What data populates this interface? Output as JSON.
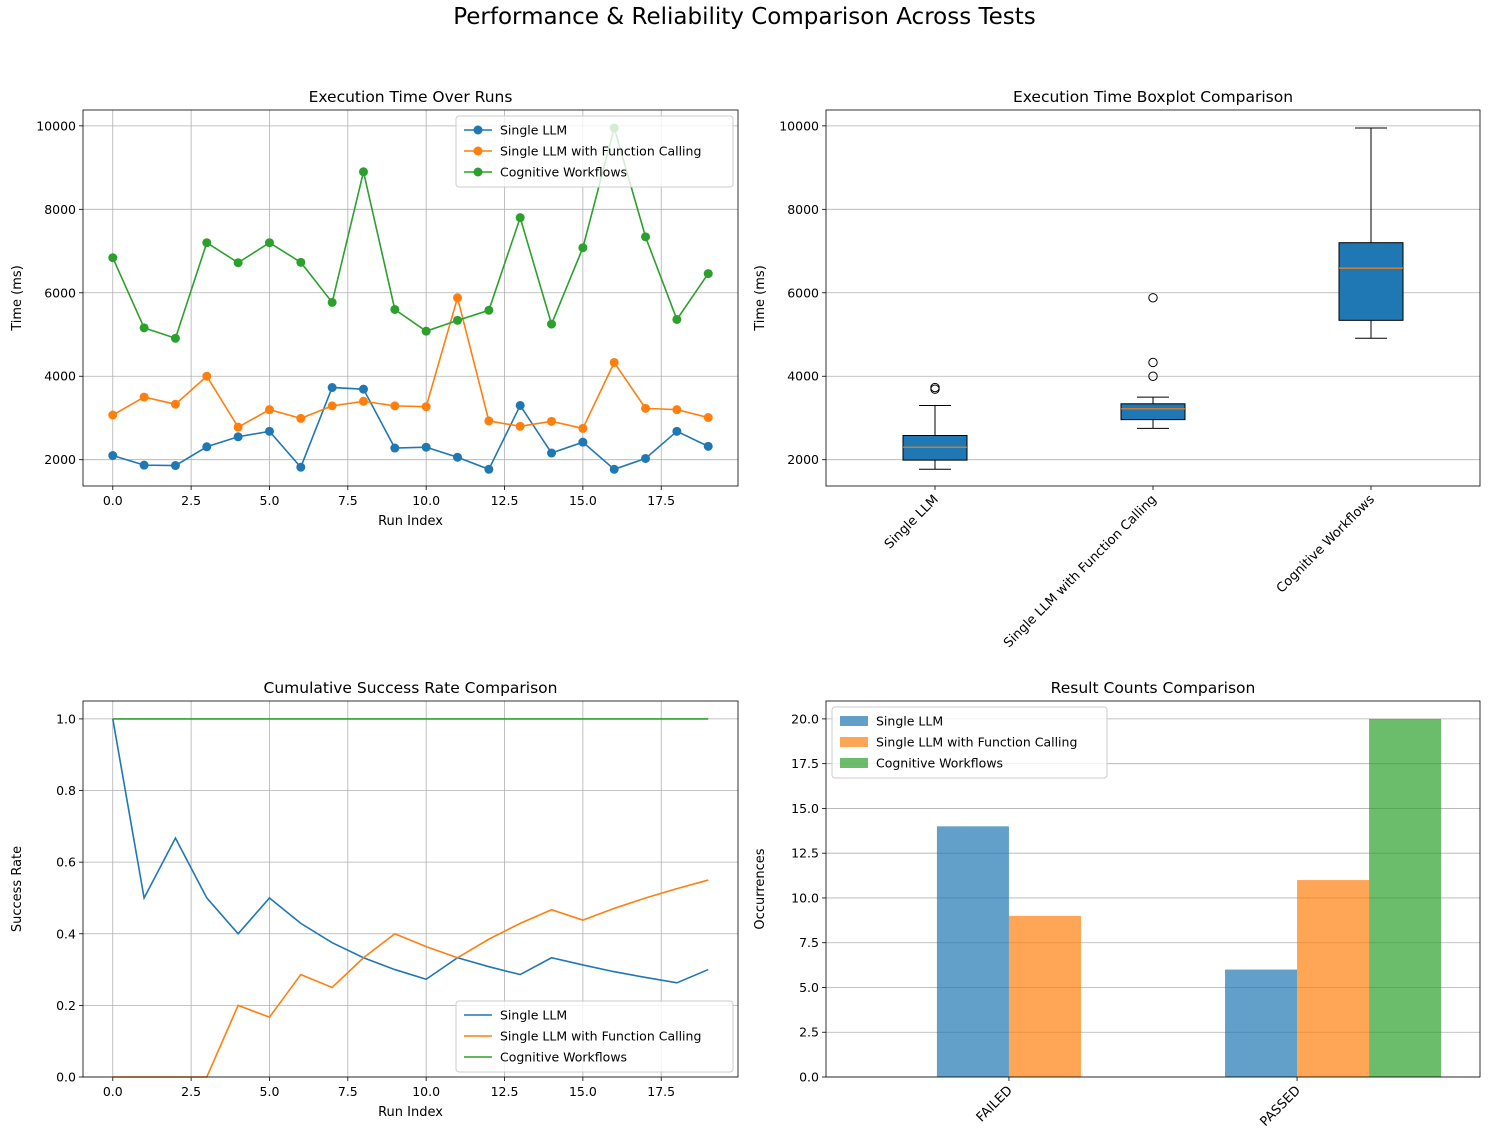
{
  "suptitle": "Performance & Reliability Comparison Across Tests",
  "colors": {
    "single": "#1f77b4",
    "function": "#ff7f0e",
    "cognitive": "#2ca02c",
    "median": "#ff7f0e"
  },
  "chart_data": [
    {
      "type": "line",
      "title": "Execution Time Over Runs",
      "xlabel": "Run Index",
      "ylabel": "Time (ms)",
      "markers": true,
      "legend": "upper right",
      "grid": true,
      "xlim": [
        -0.95,
        19.95
      ],
      "ylim": [
        1370,
        10380
      ],
      "xticks": [
        0,
        2.5,
        5,
        7.5,
        10,
        12.5,
        15,
        17.5
      ],
      "xticklabels": [
        "0.0",
        "2.5",
        "5.0",
        "7.5",
        "10.0",
        "12.5",
        "15.0",
        "17.5"
      ],
      "yticks": [
        2000,
        4000,
        6000,
        8000,
        10000
      ],
      "yticklabels": [
        "2000",
        "4000",
        "6000",
        "8000",
        "10000"
      ],
      "x": [
        0,
        1,
        2,
        3,
        4,
        5,
        6,
        7,
        8,
        9,
        10,
        11,
        12,
        13,
        14,
        15,
        16,
        17,
        18,
        19
      ],
      "series": [
        {
          "name": "Single LLM",
          "color": "#1f77b4",
          "values": [
            2100,
            1870,
            1860,
            2310,
            2550,
            2680,
            1820,
            3730,
            3690,
            2280,
            2300,
            2060,
            1770,
            3300,
            2160,
            2420,
            1770,
            2030,
            2680,
            2320
          ]
        },
        {
          "name": "Single LLM with Function Calling",
          "color": "#ff7f0e",
          "values": [
            3070,
            3500,
            3330,
            4000,
            2780,
            3200,
            2990,
            3290,
            3400,
            3290,
            3270,
            5880,
            2930,
            2800,
            2920,
            2750,
            4330,
            3230,
            3200,
            3010
          ]
        },
        {
          "name": "Cognitive Workflows",
          "color": "#2ca02c",
          "values": [
            6840,
            5160,
            4910,
            7200,
            6720,
            7200,
            6730,
            5770,
            8900,
            5600,
            5080,
            5340,
            5580,
            7800,
            5250,
            7080,
            9950,
            7340,
            5360,
            6460
          ]
        }
      ]
    },
    {
      "type": "box",
      "title": "Execution Time Boxplot Comparison",
      "ylabel": "Time (ms)",
      "grid": "y",
      "ylim": [
        1370,
        10380
      ],
      "yticks": [
        2000,
        4000,
        6000,
        8000,
        10000
      ],
      "yticklabels": [
        "2000",
        "4000",
        "6000",
        "8000",
        "10000"
      ],
      "categories": [
        "Single LLM",
        "Single LLM with Function Calling",
        "Cognitive Workflows"
      ],
      "boxes": [
        {
          "whisker_low": 1770,
          "q1": 1990,
          "median": 2300,
          "q3": 2580,
          "whisker_high": 3300,
          "outliers": [
            3690,
            3730
          ]
        },
        {
          "whisker_low": 2750,
          "q1": 2960,
          "median": 3220,
          "q3": 3340,
          "whisker_high": 3500,
          "outliers": [
            4000,
            4330,
            5880
          ]
        },
        {
          "whisker_low": 4910,
          "q1": 5340,
          "median": 6590,
          "q3": 7200,
          "whisker_high": 9950,
          "outliers": []
        }
      ]
    },
    {
      "type": "line",
      "title": "Cumulative Success Rate Comparison",
      "xlabel": "Run Index",
      "ylabel": "Success Rate",
      "markers": false,
      "legend": "lower right",
      "grid": true,
      "xlim": [
        -0.95,
        19.95
      ],
      "ylim": [
        0,
        1.05
      ],
      "xticks": [
        0,
        2.5,
        5,
        7.5,
        10,
        12.5,
        15,
        17.5
      ],
      "xticklabels": [
        "0.0",
        "2.5",
        "5.0",
        "7.5",
        "10.0",
        "12.5",
        "15.0",
        "17.5"
      ],
      "yticks": [
        0,
        0.2,
        0.4,
        0.6,
        0.8,
        1.0
      ],
      "yticklabels": [
        "0.0",
        "0.2",
        "0.4",
        "0.6",
        "0.8",
        "1.0"
      ],
      "x": [
        0,
        1,
        2,
        3,
        4,
        5,
        6,
        7,
        8,
        9,
        10,
        11,
        12,
        13,
        14,
        15,
        16,
        17,
        18,
        19
      ],
      "series": [
        {
          "name": "Single LLM",
          "color": "#1f77b4",
          "values": [
            1.0,
            0.5,
            0.667,
            0.5,
            0.4,
            0.5,
            0.429,
            0.375,
            0.333,
            0.3,
            0.273,
            0.333,
            0.308,
            0.286,
            0.333,
            0.313,
            0.294,
            0.278,
            0.263,
            0.3
          ]
        },
        {
          "name": "Single LLM with Function Calling",
          "color": "#ff7f0e",
          "values": [
            0,
            0,
            0,
            0,
            0.2,
            0.167,
            0.286,
            0.25,
            0.333,
            0.4,
            0.364,
            0.333,
            0.385,
            0.429,
            0.467,
            0.438,
            0.471,
            0.5,
            0.526,
            0.55
          ]
        },
        {
          "name": "Cognitive Workflows",
          "color": "#2ca02c",
          "values": [
            1,
            1,
            1,
            1,
            1,
            1,
            1,
            1,
            1,
            1,
            1,
            1,
            1,
            1,
            1,
            1,
            1,
            1,
            1,
            1
          ]
        }
      ]
    },
    {
      "type": "bar",
      "title": "Result Counts Comparison",
      "ylabel": "Occurrences",
      "legend": "upper left",
      "grid": "y",
      "ylim": [
        0,
        21
      ],
      "yticks": [
        0,
        2.5,
        5,
        7.5,
        10,
        12.5,
        15,
        17.5,
        20
      ],
      "yticklabels": [
        "0.0",
        "2.5",
        "5.0",
        "7.5",
        "10.0",
        "12.5",
        "15.0",
        "17.5",
        "20.0"
      ],
      "categories": [
        "FAILED",
        "PASSED"
      ],
      "series": [
        {
          "name": "Single LLM",
          "color": "#1f77b4",
          "values": [
            14,
            6
          ]
        },
        {
          "name": "Single LLM with Function Calling",
          "color": "#ff7f0e",
          "values": [
            9,
            11
          ]
        },
        {
          "name": "Cognitive Workflows",
          "color": "#2ca02c",
          "values": [
            0,
            20
          ]
        }
      ]
    }
  ]
}
